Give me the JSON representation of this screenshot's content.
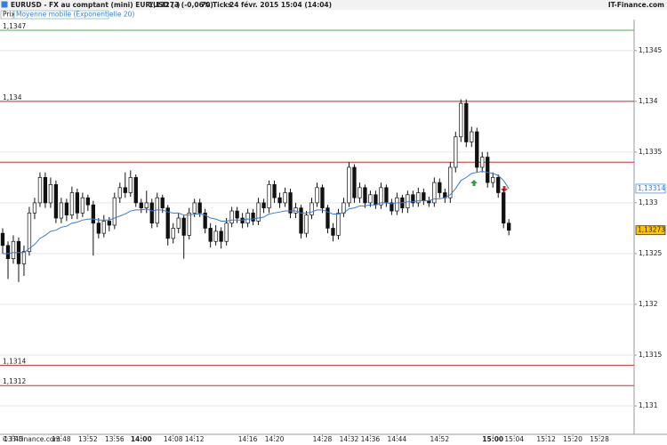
{
  "chart_data": {
    "type": "candlestick",
    "header": {
      "title": "EURUSD - FX au comptant (mini) EUR/USD (-)",
      "last": "1,13273 (-0,06%)",
      "ticks": "70 Ticks",
      "date": "24 févr. 2015 15:04 (14:04)",
      "source": "IT-Finance.com"
    },
    "legend": [
      "Prix",
      "Moyenne mobile (Exponentielle 20)"
    ],
    "footer": "© IT-Finance.com",
    "ylim": [
      1.13072,
      1.13477
    ],
    "yticks": [
      {
        "value": 1.131,
        "label": "1,131"
      },
      {
        "value": 1.1315,
        "label": "1,1315"
      },
      {
        "value": 1.132,
        "label": "1,132"
      },
      {
        "value": 1.1325,
        "label": "1,1325"
      },
      {
        "value": 1.133,
        "label": "1,133"
      },
      {
        "value": 1.1335,
        "label": "1,1335"
      },
      {
        "value": 1.134,
        "label": "1,134"
      },
      {
        "value": 1.1345,
        "label": "1,1345"
      }
    ],
    "grid": true,
    "hlines": [
      {
        "value": 1.1347,
        "label": "1,1347",
        "color": "#4caf50"
      },
      {
        "value": 1.134,
        "label": "1,134",
        "color": "#d9262c"
      },
      {
        "value": 1.1334,
        "label": null,
        "color": "#d9262c"
      },
      {
        "value": 1.1314,
        "label": "1,1314",
        "color": "#d9262c"
      },
      {
        "value": 1.1312,
        "label": "1,1312",
        "color": "#d9262c"
      }
    ],
    "price_tags": [
      {
        "value": 1.13314,
        "label": "1,13314",
        "color": "#3a7bd5",
        "fill": "#ffffff"
      },
      {
        "value": 1.13273,
        "label": "1,13273",
        "color": "#222222",
        "fill": "#ffc400"
      }
    ],
    "categories": [
      null,
      null,
      "13:40",
      null,
      null,
      null,
      null,
      null,
      null,
      null,
      null,
      "13:48",
      null,
      null,
      null,
      null,
      "13:52",
      null,
      null,
      null,
      null,
      "13:56",
      null,
      null,
      null,
      null,
      "14:00",
      null,
      null,
      null,
      null,
      null,
      "14:08",
      null,
      null,
      null,
      "14:12",
      null,
      null,
      null,
      null,
      null,
      null,
      null,
      null,
      null,
      "14:16",
      null,
      null,
      null,
      null,
      "14:20",
      null,
      null,
      null,
      null,
      null,
      null,
      null,
      null,
      "14:28",
      null,
      null,
      null,
      null,
      "14:32",
      null,
      null,
      null,
      "14:36",
      null,
      null,
      null,
      null,
      "14:44",
      null,
      null,
      null,
      null,
      null,
      null,
      null,
      "14:52",
      null,
      null,
      null,
      null,
      null,
      null,
      null,
      null,
      null,
      "15:00",
      null,
      null,
      null,
      "15:04",
      null,
      null,
      null,
      null,
      null,
      "15:12",
      null,
      null,
      null,
      null,
      "15:20",
      null,
      null,
      null,
      null,
      "15:28",
      null,
      null,
      null,
      null,
      null,
      null
    ],
    "open": [
      1.1327,
      1.13258,
      1.13245,
      1.13262,
      1.1324,
      1.13252,
      1.1329,
      1.133,
      1.13325,
      1.133,
      1.13318,
      1.13285,
      1.133,
      1.13288,
      1.1331,
      1.1329,
      1.13305,
      1.13298,
      1.1328,
      1.1327,
      1.13282,
      1.13278,
      1.13305,
      1.13315,
      1.1331,
      1.13325,
      1.133,
      1.13295,
      1.133,
      1.1328,
      1.13305,
      1.13295,
      1.13265,
      1.13275,
      1.13285,
      1.13268,
      1.1329,
      1.133,
      1.1329,
      1.13275,
      1.13262,
      1.13272,
      1.13262,
      1.1328,
      1.13292,
      1.13285,
      1.1328,
      1.1329,
      1.13282,
      1.133,
      1.13295,
      1.13318,
      1.13305,
      1.133,
      1.1331,
      1.1329,
      1.13295,
      1.1327,
      1.13288,
      1.133,
      1.13315,
      1.13295,
      1.13275,
      1.13268,
      1.1329,
      1.133,
      1.13335,
      1.13305,
      1.13315,
      1.133,
      1.13308,
      1.13298,
      1.13315,
      1.133,
      1.13292,
      1.13305,
      1.13295,
      1.13308,
      1.133,
      1.1331,
      1.13302,
      1.133,
      1.1332,
      1.1331,
      1.13305,
      1.13335,
      1.13365,
      1.13398,
      1.1336,
      1.1337,
      1.13335,
      1.13345,
      1.1332,
      1.13325,
      1.1331,
      1.1328,
      null,
      null,
      null,
      null,
      null,
      null,
      null,
      null,
      null,
      null,
      null,
      null,
      null,
      null,
      null,
      null,
      null,
      null,
      null,
      null,
      null,
      null,
      null
    ],
    "high": [
      1.13275,
      1.13262,
      1.13268,
      1.13266,
      1.13258,
      1.13296,
      1.13305,
      1.1333,
      1.1333,
      1.13325,
      1.13322,
      1.13305,
      1.13304,
      1.13316,
      1.13314,
      1.1331,
      1.13308,
      1.13302,
      1.13285,
      1.13288,
      1.13286,
      1.1331,
      1.1332,
      1.1333,
      1.13332,
      1.13328,
      1.13304,
      1.13312,
      1.13304,
      1.1331,
      1.13308,
      1.13298,
      1.1328,
      1.1329,
      1.13288,
      1.13295,
      1.13304,
      1.13304,
      1.13294,
      1.1328,
      1.13278,
      1.13276,
      1.13285,
      1.13296,
      1.13296,
      1.1329,
      1.13294,
      1.13294,
      1.13305,
      1.13304,
      1.13322,
      1.13322,
      1.1331,
      1.13315,
      1.13314,
      1.133,
      1.13298,
      1.13292,
      1.13305,
      1.1332,
      1.13318,
      1.13298,
      1.1328,
      1.13294,
      1.13305,
      1.1334,
      1.13338,
      1.1332,
      1.13318,
      1.13312,
      1.13312,
      1.1332,
      1.13318,
      1.13304,
      1.1331,
      1.13308,
      1.13312,
      1.13312,
      1.13315,
      1.13314,
      1.13306,
      1.13325,
      1.13324,
      1.13314,
      1.1334,
      1.1337,
      1.13402,
      1.13402,
      1.13375,
      1.13374,
      1.1335,
      1.1335,
      1.1333,
      1.13328,
      1.13314,
      1.13284,
      null,
      null,
      null,
      null,
      null,
      null,
      null,
      null,
      null,
      null,
      null,
      null,
      null,
      null,
      null,
      null,
      null,
      null,
      null,
      null,
      null,
      null,
      null
    ],
    "low": [
      1.1325,
      1.13225,
      1.1324,
      1.13222,
      1.13228,
      1.13248,
      1.13284,
      1.13296,
      1.13295,
      1.13295,
      1.1328,
      1.1328,
      1.13282,
      1.13284,
      1.13284,
      1.13286,
      1.13292,
      1.13248,
      1.13265,
      1.13266,
      1.13272,
      1.13274,
      1.133,
      1.13305,
      1.13306,
      1.13296,
      1.1329,
      1.1329,
      1.13275,
      1.13276,
      1.1329,
      1.13258,
      1.1326,
      1.1327,
      1.13245,
      1.13264,
      1.13286,
      1.13286,
      1.1327,
      1.13256,
      1.13258,
      1.13255,
      1.13258,
      1.13276,
      1.1328,
      1.13275,
      1.13276,
      1.13278,
      1.13278,
      1.1329,
      1.1329,
      1.133,
      1.13295,
      1.13296,
      1.13285,
      1.13285,
      1.13265,
      1.13266,
      1.13284,
      1.13296,
      1.1329,
      1.1327,
      1.13262,
      1.13264,
      1.13286,
      1.13296,
      1.133,
      1.133,
      1.13295,
      1.13296,
      1.13294,
      1.13294,
      1.13296,
      1.13288,
      1.13288,
      1.1329,
      1.1329,
      1.13296,
      1.13296,
      1.13298,
      1.13296,
      1.13296,
      1.13305,
      1.133,
      1.133,
      1.1333,
      1.1336,
      1.13355,
      1.13355,
      1.1333,
      1.1333,
      1.13315,
      1.13315,
      1.13305,
      1.13275,
      1.13268,
      null,
      null,
      null,
      null,
      null,
      null,
      null,
      null,
      null,
      null,
      null,
      null,
      null,
      null,
      null,
      null,
      null,
      null,
      null,
      null,
      null,
      null,
      null
    ],
    "close": [
      1.13258,
      1.13245,
      1.13262,
      1.1324,
      1.13252,
      1.1329,
      1.133,
      1.13325,
      1.133,
      1.13318,
      1.13285,
      1.133,
      1.13288,
      1.1331,
      1.1329,
      1.13305,
      1.13298,
      1.1328,
      1.1327,
      1.13282,
      1.13278,
      1.13305,
      1.13315,
      1.1331,
      1.13325,
      1.133,
      1.13295,
      1.133,
      1.1328,
      1.13305,
      1.13295,
      1.13265,
      1.13275,
      1.13285,
      1.13268,
      1.1329,
      1.133,
      1.1329,
      1.13275,
      1.13262,
      1.13272,
      1.13262,
      1.1328,
      1.13292,
      1.13285,
      1.1328,
      1.1329,
      1.13282,
      1.133,
      1.13295,
      1.13318,
      1.13305,
      1.133,
      1.1331,
      1.1329,
      1.13295,
      1.1327,
      1.13288,
      1.133,
      1.13315,
      1.13295,
      1.13275,
      1.13268,
      1.1329,
      1.133,
      1.13335,
      1.13305,
      1.13315,
      1.133,
      1.13308,
      1.13298,
      1.13315,
      1.133,
      1.13292,
      1.13305,
      1.13295,
      1.13308,
      1.133,
      1.1331,
      1.13302,
      1.133,
      1.1332,
      1.1331,
      1.13305,
      1.13335,
      1.13365,
      1.13398,
      1.1336,
      1.1337,
      1.13335,
      1.13345,
      1.1332,
      1.13325,
      1.1331,
      1.1328,
      1.13273,
      null,
      null,
      null,
      null,
      null,
      null,
      null,
      null,
      null,
      null,
      null,
      null,
      null,
      null,
      null,
      null,
      null,
      null,
      null,
      null,
      null,
      null,
      null
    ],
    "ma": {
      "color": "#3a7bd5",
      "values": [
        1.1325,
        1.1325,
        1.13251,
        1.13251,
        1.13251,
        1.13255,
        1.13259,
        1.13265,
        1.13268,
        1.13272,
        1.13273,
        1.13276,
        1.13277,
        1.1328,
        1.13281,
        1.13283,
        1.13284,
        1.13284,
        1.13283,
        1.13283,
        1.13283,
        1.13285,
        1.13287,
        1.13289,
        1.13292,
        1.13293,
        1.13293,
        1.13294,
        1.13292,
        1.13293,
        1.13293,
        1.13291,
        1.1329,
        1.1329,
        1.13288,
        1.13288,
        1.13289,
        1.13289,
        1.13288,
        1.13285,
        1.13284,
        1.13282,
        1.13282,
        1.13283,
        1.13283,
        1.13283,
        1.13284,
        1.13284,
        1.13285,
        1.13286,
        1.13289,
        1.1329,
        1.13291,
        1.13292,
        1.13292,
        1.13292,
        1.1329,
        1.1329,
        1.13291,
        1.13293,
        1.13293,
        1.13291,
        1.13289,
        1.13289,
        1.1329,
        1.13294,
        1.13295,
        1.13297,
        1.13297,
        1.13298,
        1.13298,
        1.133,
        1.133,
        1.13299,
        1.133,
        1.133,
        1.13301,
        1.13301,
        1.13302,
        1.13302,
        1.13302,
        1.13304,
        1.13304,
        1.13305,
        1.13308,
        1.13314,
        1.13322,
        1.13325,
        1.13329,
        1.1333,
        1.13331,
        1.1333,
        1.13329,
        1.13327,
        1.13322,
        1.13314,
        null,
        null,
        null,
        null,
        null,
        null,
        null,
        null,
        null,
        null,
        null,
        null,
        null,
        null,
        null,
        null,
        null,
        null,
        null,
        null,
        null,
        null,
        null
      ]
    }
  }
}
